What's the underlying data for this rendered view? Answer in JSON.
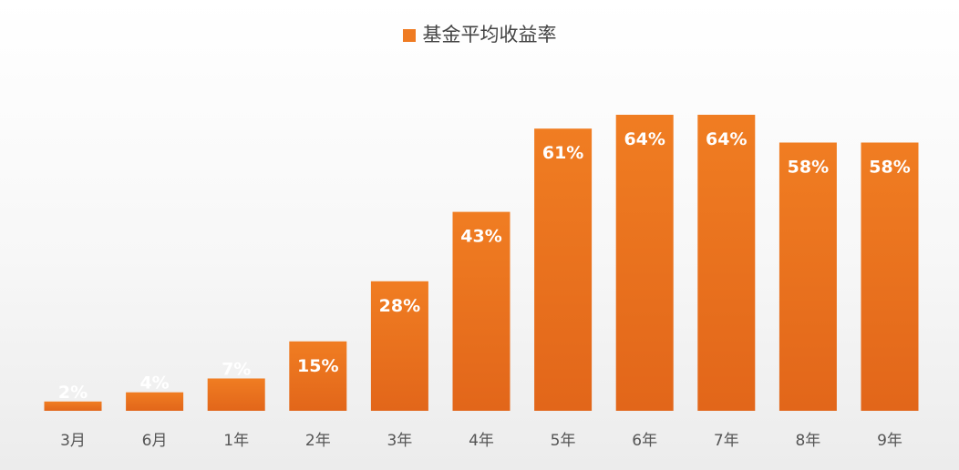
{
  "legend": {
    "label": "基金平均收益率",
    "color": "#ef7b22"
  },
  "chart_data": {
    "type": "bar",
    "categories": [
      "3月",
      "6月",
      "1年",
      "2年",
      "3年",
      "4年",
      "5年",
      "6年",
      "7年",
      "8年",
      "9年"
    ],
    "series": [
      {
        "name": "基金平均收益率",
        "values": [
          2,
          4,
          7,
          15,
          28,
          43,
          61,
          64,
          64,
          58,
          58
        ],
        "labels": [
          "2%",
          "4%",
          "7%",
          "15%",
          "28%",
          "43%",
          "61%",
          "64%",
          "64%",
          "58%",
          "58%"
        ]
      }
    ],
    "ylim": [
      0,
      64
    ],
    "grid": false,
    "legend_position": "top-center",
    "colors": {
      "bar_top": "#f07d22",
      "bar_bottom": "#e2661a",
      "label": "#ffffff"
    }
  }
}
